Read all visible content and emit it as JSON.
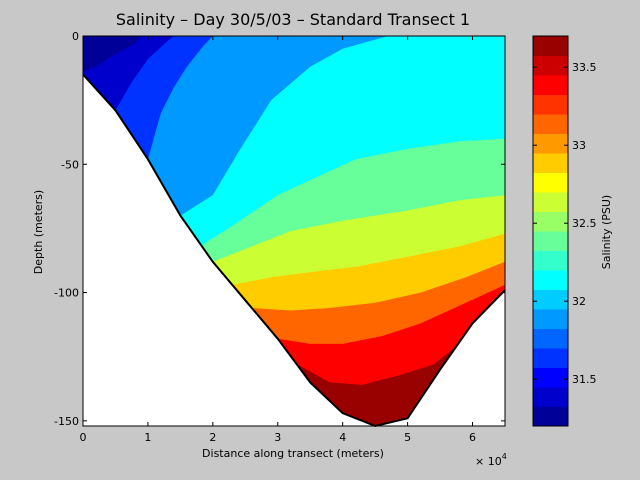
{
  "chart_data": {
    "type": "heatmap",
    "title": "Salinity – Day 30/5/03 – Standard Transect 1",
    "xlabel": "Distance along transect (meters)",
    "ylabel": "Depth (meters)",
    "x_multiplier_label": "× 10",
    "x_multiplier_exp": "4",
    "xlim": [
      0,
      6.5
    ],
    "ylim": [
      -152,
      0
    ],
    "x_ticks": [
      "0",
      "1",
      "2",
      "3",
      "4",
      "5",
      "6"
    ],
    "y_ticks": [
      "0",
      "-50",
      "-100",
      "-150"
    ],
    "colorbar": {
      "label": "Salinity (PSU)",
      "range": [
        31.2,
        33.7
      ],
      "ticks": [
        "31.5",
        "32",
        "32.5",
        "33",
        "33.5"
      ],
      "levels": 20
    },
    "bathymetry": [
      [
        0,
        -15
      ],
      [
        0.5,
        -29
      ],
      [
        1.0,
        -48
      ],
      [
        1.5,
        -70
      ],
      [
        2.0,
        -88
      ],
      [
        2.5,
        -103
      ],
      [
        3.0,
        -118
      ],
      [
        3.5,
        -135
      ],
      [
        4.0,
        -147
      ],
      [
        4.5,
        -152
      ],
      [
        5.0,
        -149
      ],
      [
        5.5,
        -130
      ],
      [
        6.0,
        -112
      ],
      [
        6.5,
        -99
      ]
    ],
    "contours": [
      {
        "level": 31.35,
        "points": [
          [
            0,
            -14
          ],
          [
            0.2,
            -12
          ],
          [
            0.5,
            -7
          ],
          [
            0.8,
            -3
          ],
          [
            0.9,
            0
          ]
        ]
      },
      {
        "level": 31.6,
        "points": [
          [
            0.5,
            -29
          ],
          [
            0.75,
            -18
          ],
          [
            1.0,
            -9
          ],
          [
            1.3,
            -2
          ],
          [
            1.4,
            0
          ]
        ]
      },
      {
        "level": 31.85,
        "points": [
          [
            1.0,
            -48
          ],
          [
            1.2,
            -30
          ],
          [
            1.4,
            -20
          ],
          [
            1.6,
            -12
          ],
          [
            1.85,
            -4
          ],
          [
            2.0,
            0
          ]
        ]
      },
      {
        "level": 32.1,
        "points": [
          [
            1.5,
            -70
          ],
          [
            2.0,
            -62
          ],
          [
            2.4,
            -45
          ],
          [
            2.9,
            -25
          ],
          [
            3.5,
            -12
          ],
          [
            4.0,
            -5
          ],
          [
            4.7,
            0
          ]
        ]
      },
      {
        "level": 32.35,
        "points": [
          [
            1.8,
            -82
          ],
          [
            2.3,
            -74
          ],
          [
            3.0,
            -62
          ],
          [
            3.6,
            -55
          ],
          [
            4.2,
            -48
          ],
          [
            5.0,
            -44
          ],
          [
            5.8,
            -41
          ],
          [
            6.5,
            -40
          ]
        ]
      },
      {
        "level": 32.6,
        "points": [
          [
            2.0,
            -88
          ],
          [
            2.6,
            -82
          ],
          [
            3.2,
            -76
          ],
          [
            4.0,
            -72
          ],
          [
            5.0,
            -68
          ],
          [
            5.8,
            -64
          ],
          [
            6.5,
            -62
          ]
        ]
      },
      {
        "level": 32.85,
        "points": [
          [
            2.3,
            -97
          ],
          [
            2.9,
            -94
          ],
          [
            3.5,
            -92
          ],
          [
            4.2,
            -90
          ],
          [
            5.0,
            -86
          ],
          [
            5.8,
            -82
          ],
          [
            6.5,
            -77
          ]
        ]
      },
      {
        "level": 33.1,
        "points": [
          [
            2.6,
            -106
          ],
          [
            3.2,
            -107
          ],
          [
            3.8,
            -106
          ],
          [
            4.5,
            -104
          ],
          [
            5.2,
            -100
          ],
          [
            5.9,
            -94
          ],
          [
            6.5,
            -88
          ]
        ]
      },
      {
        "level": 33.35,
        "points": [
          [
            3.0,
            -118
          ],
          [
            3.5,
            -120
          ],
          [
            4.0,
            -120
          ],
          [
            4.6,
            -117
          ],
          [
            5.2,
            -112
          ],
          [
            5.9,
            -104
          ],
          [
            6.5,
            -97
          ]
        ]
      },
      {
        "level": 33.6,
        "points": [
          [
            3.3,
            -128
          ],
          [
            3.8,
            -135
          ],
          [
            4.3,
            -136
          ],
          [
            4.9,
            -132
          ],
          [
            5.4,
            -128
          ],
          [
            5.9,
            -118
          ],
          [
            6.3,
            -110
          ]
        ]
      }
    ]
  }
}
